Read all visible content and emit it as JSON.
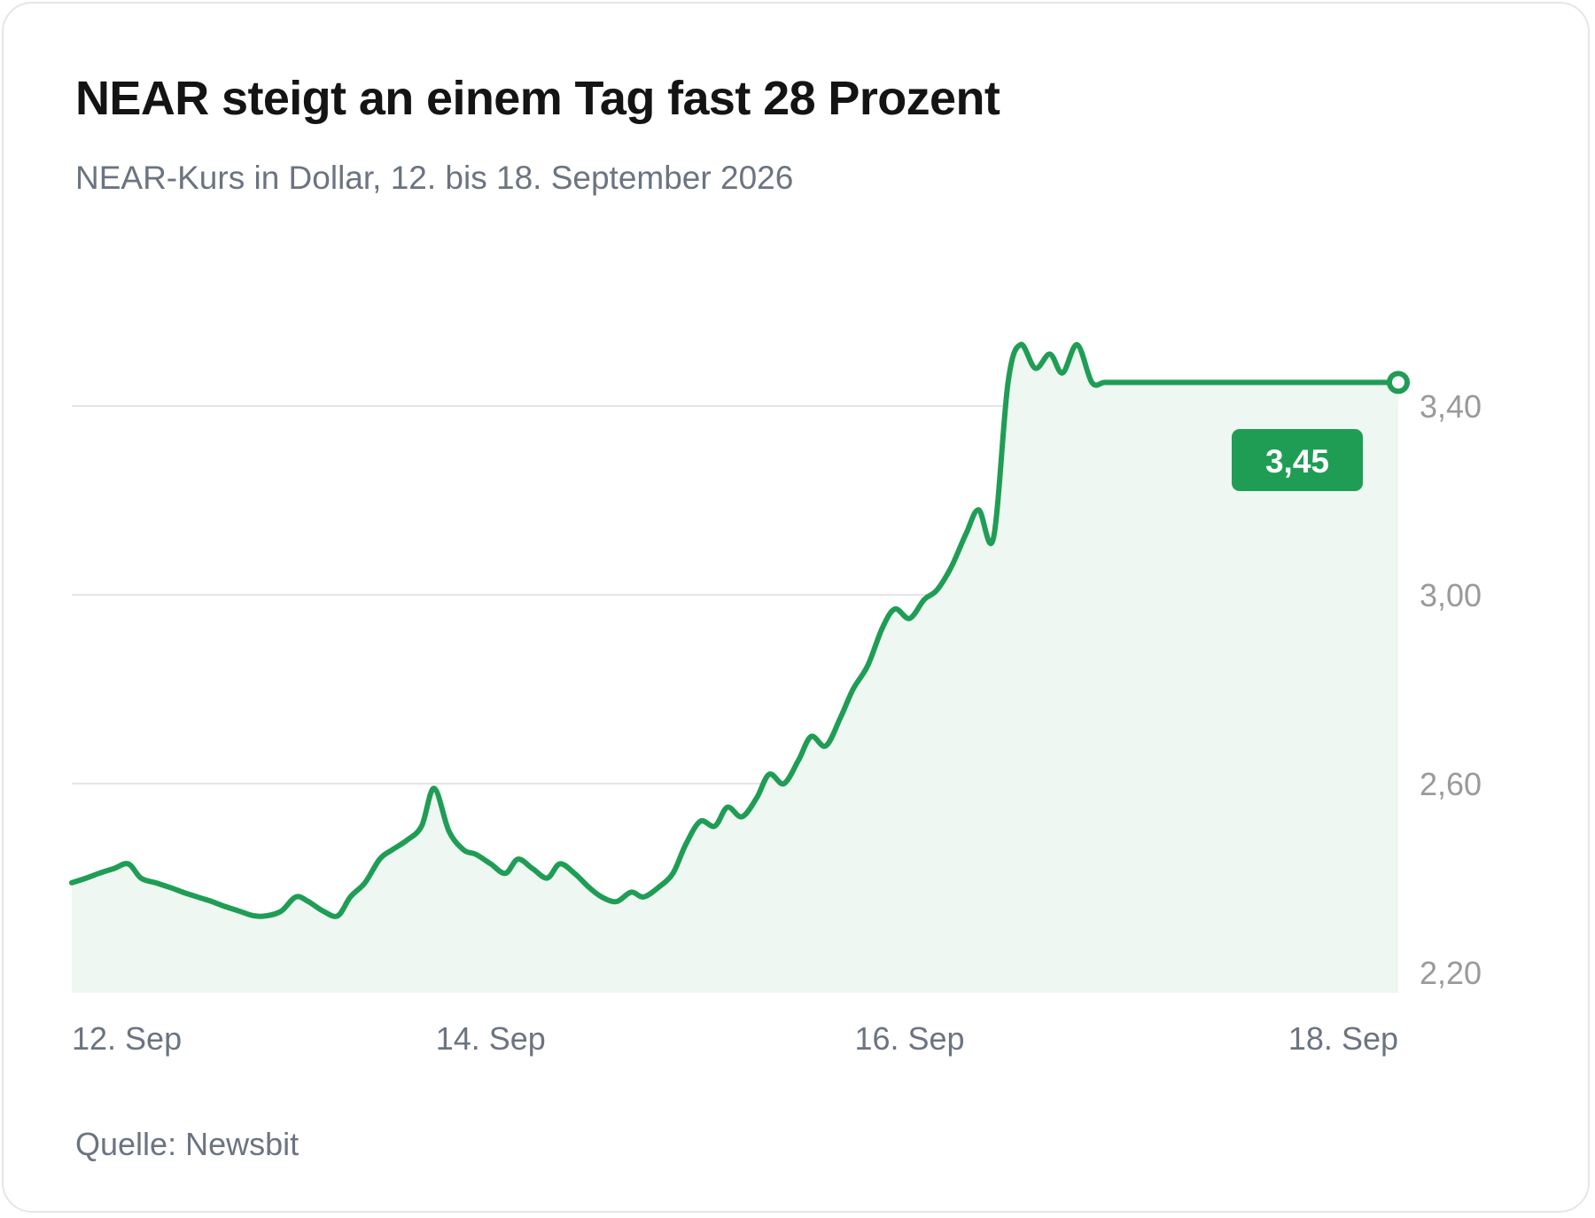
{
  "title": "NEAR steigt an einem Tag fast 28 Prozent",
  "subtitle": "NEAR-Kurs in Dollar, 12. bis 18. September 2026",
  "source": "Quelle: Newsbit",
  "colors": {
    "line": "#1f9d55",
    "area": "#eef7f1",
    "grid": "#e5e5e5",
    "badge": "#1f9d55"
  },
  "chart_data": {
    "type": "area",
    "title": "NEAR steigt an einem Tag fast 28 Prozent",
    "subtitle": "NEAR-Kurs in Dollar, 12. bis 18. September 2026",
    "ylim": [
      2.16,
      3.63
    ],
    "y_ticks": [
      {
        "value": 2.2,
        "label": "2,20"
      },
      {
        "value": 2.6,
        "label": "2,60"
      },
      {
        "value": 3.0,
        "label": "3,00"
      },
      {
        "value": 3.4,
        "label": "3,40"
      }
    ],
    "x_range": [
      12.0,
      18.333
    ],
    "x_ticks": [
      {
        "value": 12.0,
        "label": "12. Sep",
        "anchor": "start"
      },
      {
        "value": 14.0,
        "label": "14. Sep",
        "anchor": "middle"
      },
      {
        "value": 16.0,
        "label": "16. Sep",
        "anchor": "middle"
      },
      {
        "value": 18.333,
        "label": "18. Sep",
        "anchor": "end"
      }
    ],
    "y_axis_position": "right",
    "grid": true,
    "last_value_label": "3,45",
    "series": [
      {
        "x": [
          12.0,
          12.07,
          12.13,
          12.2,
          12.27,
          12.33,
          12.4,
          12.47,
          12.53,
          12.6,
          12.67,
          12.73,
          12.8,
          12.87,
          12.93,
          13.0,
          13.07,
          13.13,
          13.2,
          13.27,
          13.33,
          13.4,
          13.47,
          13.53,
          13.6,
          13.67,
          13.73,
          13.8,
          13.87,
          13.93,
          14.0,
          14.07,
          14.13,
          14.2,
          14.27,
          14.33,
          14.4,
          14.47,
          14.53,
          14.6,
          14.67,
          14.73,
          14.8,
          14.87,
          14.93,
          15.0,
          15.07,
          15.13,
          15.2,
          15.27,
          15.33,
          15.4,
          15.47,
          15.53,
          15.6,
          15.67,
          15.73,
          15.8,
          15.87,
          15.93,
          16.0,
          16.07,
          16.13,
          16.2,
          16.27,
          16.33,
          16.4,
          16.47,
          16.53,
          16.6,
          16.67,
          16.73,
          16.8,
          16.87,
          16.93,
          17.0,
          17.07,
          17.13,
          17.2,
          17.27,
          17.33,
          17.4,
          17.47,
          17.53,
          17.6,
          17.67,
          17.73,
          17.8,
          17.87,
          17.93,
          18.0,
          18.03,
          18.07,
          18.1,
          18.13,
          18.17,
          18.2,
          18.23,
          18.27,
          18.3,
          18.333
        ],
        "y": [
          2.39,
          2.4,
          2.41,
          2.42,
          2.43,
          2.4,
          2.39,
          2.38,
          2.37,
          2.36,
          2.35,
          2.34,
          2.33,
          2.32,
          2.32,
          2.33,
          2.36,
          2.35,
          2.33,
          2.32,
          2.36,
          2.39,
          2.44,
          2.46,
          2.48,
          2.51,
          2.59,
          2.5,
          2.46,
          2.45,
          2.43,
          2.41,
          2.44,
          2.42,
          2.4,
          2.43,
          2.41,
          2.38,
          2.36,
          2.35,
          2.37,
          2.36,
          2.38,
          2.41,
          2.47,
          2.52,
          2.51,
          2.55,
          2.53,
          2.57,
          2.62,
          2.6,
          2.65,
          2.7,
          2.68,
          2.74,
          2.8,
          2.85,
          2.93,
          2.97,
          2.95,
          2.99,
          3.01,
          3.06,
          3.13,
          3.18,
          3.12,
          3.45,
          3.53,
          3.48,
          3.51,
          3.47,
          3.53,
          3.45,
          3.45,
          3.45,
          3.45,
          3.45,
          3.45,
          3.45,
          3.45,
          3.45,
          3.45,
          3.45,
          3.45,
          3.45,
          3.45,
          3.45,
          3.45,
          3.45,
          3.45,
          3.45,
          3.45,
          3.45,
          3.45,
          3.45,
          3.45,
          3.45,
          3.45,
          3.45,
          3.45
        ]
      }
    ]
  }
}
